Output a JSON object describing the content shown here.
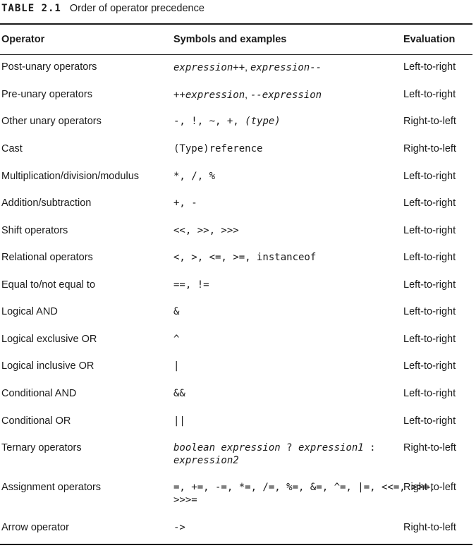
{
  "caption": {
    "label": "TABLE 2.1",
    "title": "Order of operator precedence"
  },
  "headers": {
    "operator": "Operator",
    "symbols": "Symbols and examples",
    "evaluation": "Evaluation"
  },
  "rows": [
    {
      "operator": "Post-unary operators",
      "symbols": [
        {
          "t": "expression++",
          "s": "mono-i"
        },
        {
          "t": ", ",
          "s": "sym"
        },
        {
          "t": "expression--",
          "s": "mono-i"
        }
      ],
      "evaluation": "Left-to-right"
    },
    {
      "operator": "Pre-unary operators",
      "symbols": [
        {
          "t": "++expression",
          "s": "mono-i"
        },
        {
          "t": ", ",
          "s": "sym"
        },
        {
          "t": "--expression",
          "s": "mono-i"
        }
      ],
      "evaluation": "Left-to-right"
    },
    {
      "operator": "Other unary operators",
      "symbols": [
        {
          "t": "-, !, ~, +, ",
          "s": "mono"
        },
        {
          "t": "(type)",
          "s": "mono-i"
        }
      ],
      "evaluation": "Right-to-left"
    },
    {
      "operator": "Cast",
      "symbols": [
        {
          "t": "(Type)reference",
          "s": "mono"
        }
      ],
      "evaluation": "Right-to-left"
    },
    {
      "operator": "Multiplication/division/modulus",
      "symbols": [
        {
          "t": "*, /, %",
          "s": "mono"
        }
      ],
      "evaluation": "Left-to-right"
    },
    {
      "operator": "Addition/subtraction",
      "symbols": [
        {
          "t": "+, -",
          "s": "mono"
        }
      ],
      "evaluation": "Left-to-right"
    },
    {
      "operator": "Shift operators",
      "symbols": [
        {
          "t": "<<, >>, >>>",
          "s": "mono"
        }
      ],
      "evaluation": "Left-to-right"
    },
    {
      "operator": "Relational operators",
      "symbols": [
        {
          "t": "<, >, <=, >=, instanceof",
          "s": "mono"
        }
      ],
      "evaluation": "Left-to-right"
    },
    {
      "operator": "Equal to/not equal to",
      "symbols": [
        {
          "t": "==, !=",
          "s": "mono"
        }
      ],
      "evaluation": "Left-to-right"
    },
    {
      "operator": "Logical AND",
      "symbols": [
        {
          "t": "&",
          "s": "mono"
        }
      ],
      "evaluation": "Left-to-right"
    },
    {
      "operator": "Logical exclusive OR",
      "symbols": [
        {
          "t": "^",
          "s": "mono"
        }
      ],
      "evaluation": "Left-to-right"
    },
    {
      "operator": "Logical inclusive OR",
      "symbols": [
        {
          "t": "|",
          "s": "mono"
        }
      ],
      "evaluation": "Left-to-right"
    },
    {
      "operator": "Conditional AND",
      "symbols": [
        {
          "t": "&&",
          "s": "mono"
        }
      ],
      "evaluation": "Left-to-right"
    },
    {
      "operator": "Conditional OR",
      "symbols": [
        {
          "t": "||",
          "s": "mono"
        }
      ],
      "evaluation": "Left-to-right"
    },
    {
      "operator": "Ternary operators",
      "symbols": [
        {
          "t": "boolean expression",
          "s": "mono-i"
        },
        {
          "t": " ? ",
          "s": "mono"
        },
        {
          "t": "expression1",
          "s": "mono-i"
        },
        {
          "t": " :",
          "s": "mono"
        }
      ],
      "symbols2": [
        {
          "t": "expression2",
          "s": "mono-i"
        }
      ],
      "evaluation": "Right-to-left"
    },
    {
      "operator": "Assignment operators",
      "symbols": [
        {
          "t": "=, +=, -=, *=, /=, %=, &=, ^=, |=, <<=, >>=,",
          "s": "mono"
        }
      ],
      "symbols2": [
        {
          "t": ">>>=",
          "s": "mono"
        }
      ],
      "evaluation": "Right-to-left"
    },
    {
      "operator": "Arrow operator",
      "symbols": [
        {
          "t": "->",
          "s": "mono"
        }
      ],
      "evaluation": "Right-to-left"
    }
  ]
}
